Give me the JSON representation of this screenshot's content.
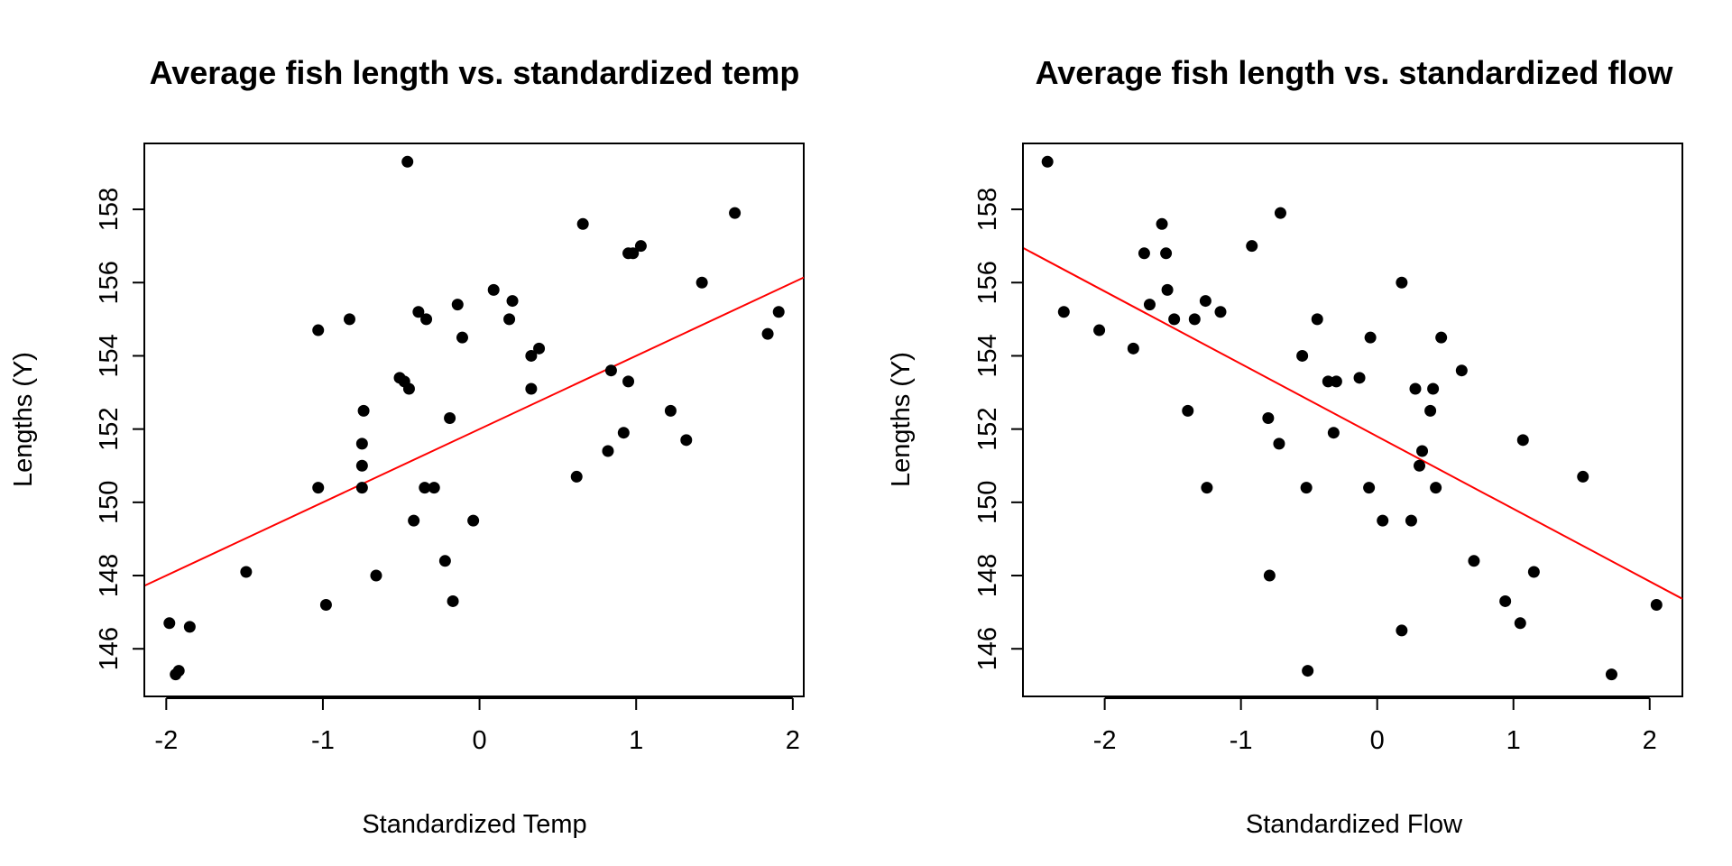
{
  "chart_data": [
    {
      "type": "scatter",
      "title": "Average fish length vs. standardized temp",
      "xlabel": "Standardized Temp",
      "ylabel": "Lengths (Y)",
      "xlim": [
        -2.14,
        2.07
      ],
      "ylim": [
        144.7,
        159.8
      ],
      "xticks": [
        -2,
        -1,
        0,
        1,
        2
      ],
      "yticks": [
        146,
        148,
        150,
        152,
        154,
        156,
        158
      ],
      "grid": false,
      "point_color": "#000000",
      "regression_color": "#ff0000",
      "regression_line": {
        "intercept": 152.0,
        "slope": 2.0
      },
      "series": [
        {
          "x": [
            -1.98,
            -1.94,
            -1.92,
            -1.85,
            -1.49,
            -1.03,
            -1.03,
            -0.98,
            -0.83,
            -0.75,
            -0.75,
            -0.75,
            -0.74,
            -0.66,
            -0.51,
            -0.48,
            -0.46,
            -0.45,
            -0.42,
            -0.39,
            -0.35,
            -0.34,
            -0.29,
            -0.22,
            -0.19,
            -0.17,
            -0.14,
            -0.11,
            -0.04,
            0.09,
            0.19,
            0.21,
            0.33,
            0.33,
            0.38,
            0.62,
            0.66,
            0.82,
            0.84,
            0.92,
            0.95,
            0.95,
            0.98,
            1.03,
            1.22,
            1.32,
            1.42,
            1.63,
            1.84,
            1.91
          ],
          "y": [
            146.7,
            145.3,
            145.4,
            146.6,
            148.1,
            154.7,
            150.4,
            147.2,
            155.0,
            151.6,
            151.0,
            150.4,
            152.5,
            148.0,
            153.4,
            153.3,
            159.3,
            153.1,
            149.5,
            155.2,
            150.4,
            155.0,
            150.4,
            148.4,
            152.3,
            147.3,
            155.4,
            154.5,
            149.5,
            155.8,
            155.0,
            155.5,
            154.0,
            153.1,
            154.2,
            150.7,
            157.6,
            151.4,
            153.6,
            151.9,
            153.3,
            156.8,
            156.8,
            157.0,
            152.5,
            151.7,
            156.0,
            157.9,
            154.6,
            155.2
          ]
        }
      ]
    },
    {
      "type": "scatter",
      "title": "Average fish length vs. standardized flow",
      "xlabel": "Standardized Flow",
      "ylabel": "Lengths (Y)",
      "xlim": [
        -2.6,
        2.24
      ],
      "ylim": [
        144.7,
        159.8
      ],
      "xticks": [
        -2,
        -1,
        0,
        1,
        2
      ],
      "yticks": [
        146,
        148,
        150,
        152,
        154,
        156,
        158
      ],
      "grid": false,
      "point_color": "#000000",
      "regression_color": "#ff0000",
      "regression_line": {
        "intercept": 151.8,
        "slope": -1.98
      },
      "series": [
        {
          "x": [
            -2.42,
            -2.3,
            -2.04,
            -1.79,
            -1.71,
            -1.67,
            -1.58,
            -1.55,
            -1.54,
            -1.49,
            -1.39,
            -1.34,
            -1.26,
            -1.25,
            -1.15,
            -0.92,
            -0.8,
            -0.79,
            -0.72,
            -0.71,
            -0.55,
            -0.52,
            -0.51,
            -0.44,
            -0.36,
            -0.32,
            -0.3,
            -0.13,
            -0.06,
            -0.05,
            0.04,
            0.18,
            0.18,
            0.25,
            0.28,
            0.31,
            0.33,
            0.39,
            0.41,
            0.43,
            0.47,
            0.62,
            0.71,
            0.94,
            1.05,
            1.07,
            1.15,
            1.51,
            1.72,
            2.05
          ],
          "y": [
            159.3,
            155.2,
            154.7,
            154.2,
            156.8,
            155.4,
            157.6,
            156.8,
            155.8,
            155.0,
            152.5,
            155.0,
            155.5,
            150.4,
            155.2,
            157.0,
            152.3,
            148.0,
            151.6,
            157.9,
            154.0,
            150.4,
            145.4,
            155.0,
            153.3,
            151.9,
            153.3,
            153.4,
            150.4,
            154.5,
            149.5,
            146.5,
            156.0,
            149.5,
            153.1,
            151.0,
            151.4,
            152.5,
            153.1,
            150.4,
            154.5,
            153.6,
            148.4,
            147.3,
            146.7,
            151.7,
            148.1,
            150.7,
            145.3,
            147.2
          ]
        }
      ]
    }
  ]
}
